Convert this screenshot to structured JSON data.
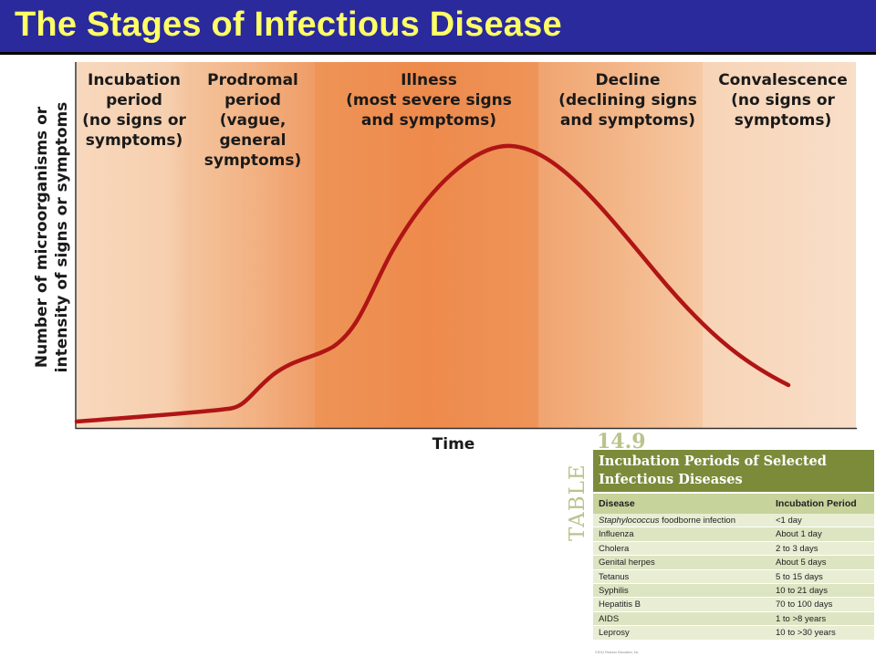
{
  "title": "The Stages of Infectious Disease",
  "diagram": {
    "y_axis_label_line1": "Number of microorganisms or",
    "y_axis_label_line2": "intensity of signs or symptoms",
    "x_axis_label": "Time",
    "stages": [
      {
        "name_line1": "Incubation",
        "name_line2": "period",
        "desc_line1": "(no signs or",
        "desc_line2": "symptoms)",
        "color": "#f6cfae"
      },
      {
        "name_line1": "Prodromal",
        "name_line2": "period",
        "desc_line1": "(vague,",
        "desc_line2": "general",
        "desc_line3": "symptoms)",
        "color": "#f3b587"
      },
      {
        "name_line1": "Illness",
        "desc_line1": "(most severe signs",
        "desc_line2": "and symptoms)",
        "color": "#ee8f52"
      },
      {
        "name_line1": "Decline",
        "desc_line1": "(declining signs",
        "desc_line2": "and symptoms)",
        "color": "#f3b587"
      },
      {
        "name_line1": "Convalescence",
        "desc_line1": "(no signs or",
        "desc_line2": "symptoms)",
        "color": "#f8d9bf"
      }
    ],
    "curve_color": "#b01515"
  },
  "table": {
    "number": "14.9",
    "word": "TABLE",
    "title_line1": "Incubation Periods of Selected",
    "title_line2": "Infectious Diseases",
    "col_disease": "Disease",
    "col_period": "Incubation Period",
    "rows": [
      {
        "disease_italic": "Staphylococcus",
        "disease_rest": " foodborne infection",
        "period": "<1 day"
      },
      {
        "disease_rest": "Influenza",
        "period": "About 1 day"
      },
      {
        "disease_rest": "Cholera",
        "period": "2 to 3 days"
      },
      {
        "disease_rest": "Genital herpes",
        "period": "About 5 days"
      },
      {
        "disease_rest": "Tetanus",
        "period": "5 to 15 days"
      },
      {
        "disease_rest": "Syphilis",
        "period": "10 to 21 days"
      },
      {
        "disease_rest": "Hepatitis B",
        "period": "70 to 100 days"
      },
      {
        "disease_rest": "AIDS",
        "period": "1 to >8 years"
      },
      {
        "disease_rest": "Leprosy",
        "period": "10 to >30 years"
      }
    ],
    "copyright": "©2011 Pearson Education, Inc."
  }
}
